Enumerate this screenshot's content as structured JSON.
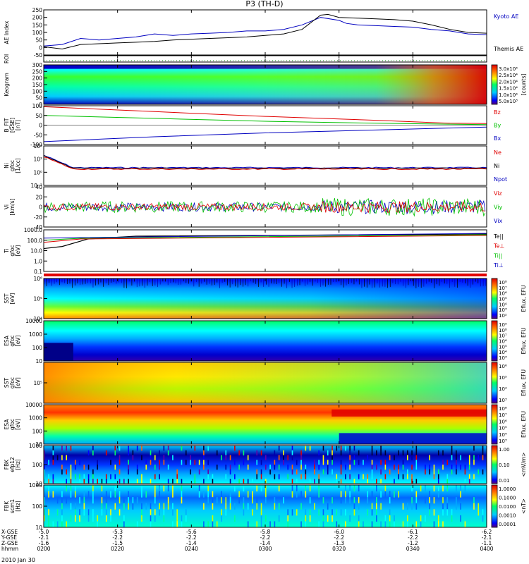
{
  "title": "P3 (TH-D)",
  "date_label": "2010 Jan 30",
  "colors": {
    "red": "#e00000",
    "green": "#00c000",
    "blue": "#0000c0",
    "black": "#000000"
  },
  "chart_data": {
    "type": "multi-panel-timeseries",
    "time_ticks": [
      "0200",
      "0220",
      "0240",
      "0300",
      "0320",
      "0340",
      "0400"
    ],
    "xlim": [
      "0200",
      "0400"
    ],
    "xlabel_rows": [
      {
        "label": "X-GSE",
        "values": [
          "-5.0",
          "-5.3",
          "-5.6",
          "-5.8",
          "-6.0",
          "-6.1",
          "-6.2"
        ]
      },
      {
        "label": "Y-GSE",
        "values": [
          "-2.1",
          "-2.2",
          "-2.2",
          "-2.2",
          "-2.2",
          "-2.2",
          "-2.1"
        ]
      },
      {
        "label": "Z-GSE",
        "values": [
          "-1.6",
          "-1.5",
          "-1.4",
          "-1.4",
          "-1.3",
          "-1.2",
          "-1.1"
        ]
      },
      {
        "label": "hhmm",
        "values": [
          "0200",
          "0220",
          "0240",
          "0300",
          "0320",
          "0340",
          "0400"
        ]
      }
    ],
    "panels": [
      {
        "id": "ae",
        "type": "line",
        "ylabel": "AE Index",
        "yticks": [
          "250",
          "200",
          "150",
          "100",
          "50",
          "0",
          "-50"
        ],
        "ylim": [
          -50,
          250
        ],
        "legend": [
          "Kyoto AE",
          "Themis AE"
        ],
        "series": [
          {
            "name": "Kyoto AE",
            "color": "blue",
            "x": [
              0,
              5,
              10,
              15,
              20,
              25,
              30,
              35,
              40,
              45,
              50,
              55,
              60,
              65,
              70,
              75,
              80,
              82,
              85,
              90,
              95,
              100,
              105,
              110,
              115,
              120
            ],
            "y": [
              10,
              20,
              60,
              50,
              60,
              70,
              90,
              80,
              90,
              95,
              100,
              110,
              110,
              120,
              150,
              200,
              180,
              160,
              150,
              145,
              140,
              135,
              120,
              110,
              90,
              85
            ]
          },
          {
            "name": "Themis AE",
            "color": "black",
            "x": [
              0,
              5,
              10,
              15,
              20,
              25,
              30,
              35,
              40,
              45,
              50,
              55,
              60,
              65,
              70,
              75,
              77,
              80,
              85,
              90,
              95,
              100,
              105,
              110,
              115,
              120
            ],
            "y": [
              5,
              -10,
              20,
              25,
              30,
              35,
              40,
              50,
              55,
              60,
              65,
              70,
              80,
              90,
              120,
              215,
              220,
              200,
              195,
              190,
              185,
              175,
              150,
              120,
              100,
              95
            ]
          }
        ]
      },
      {
        "id": "roi",
        "type": "flags",
        "ylabel": "ROI"
      },
      {
        "id": "keogram",
        "type": "heatmap",
        "ylabel": "Keogram",
        "yticks": [
          "300",
          "250",
          "200",
          "150",
          "100",
          "50",
          "0"
        ],
        "ylim": [
          0,
          300
        ],
        "colorbar": {
          "label": "[counts]",
          "ticks": [
            "3.0x10⁴",
            "2.5x10⁴",
            "2.0x10⁴",
            "1.5x10⁴",
            "1.0x10⁴",
            "5.0x10³"
          ]
        }
      },
      {
        "id": "bfit",
        "type": "line",
        "ylabel": "B_FIT",
        "ylabel2": "[GSE]",
        "ylabel3": "[nT]",
        "yticks": [
          "100",
          "50",
          "0",
          "-50",
          "-100"
        ],
        "ylim": [
          -100,
          100
        ],
        "legend": [
          "Bz",
          "By",
          "Bx"
        ],
        "series": [
          {
            "name": "Bz",
            "color": "red",
            "x": [
              0,
              30,
              60,
              90,
              110,
              120
            ],
            "y": [
              95,
              70,
              45,
              25,
              10,
              8
            ]
          },
          {
            "name": "By",
            "color": "green",
            "x": [
              0,
              30,
              60,
              90,
              110,
              120
            ],
            "y": [
              50,
              35,
              20,
              10,
              5,
              3
            ]
          },
          {
            "name": "Bx",
            "color": "blue",
            "x": [
              0,
              30,
              60,
              90,
              110,
              120
            ],
            "y": [
              -85,
              -60,
              -40,
              -25,
              -15,
              -10
            ]
          }
        ]
      },
      {
        "id": "ni",
        "type": "line",
        "ylabel": "Ni",
        "ylabel2": "gfoc",
        "ylabel3": "[1/cc]",
        "yticks": [
          "10⁴",
          "10²",
          "10⁰",
          "10⁻²"
        ],
        "ylog": true,
        "legend": [
          "Ne",
          "Ni",
          "Npot"
        ]
      },
      {
        "id": "vi",
        "type": "line",
        "ylabel": "Vi",
        "ylabel2": "[km/s]",
        "yticks": [
          "40",
          "20",
          "0",
          "-20",
          "-40"
        ],
        "ylim": [
          -40,
          40
        ],
        "legend": [
          "Viz",
          "Viy",
          "Vix"
        ]
      },
      {
        "id": "ti",
        "type": "line",
        "ylabel": "Ti",
        "ylabel2": "gfoc",
        "ylabel3": "[eV]",
        "yticks": [
          "1000.0",
          "100.0",
          "10.0",
          "1.0",
          "0.1"
        ],
        "ylog": true,
        "legend": [
          "Te||",
          "Te⊥",
          "Ti||",
          "Ti⊥"
        ]
      },
      {
        "id": "sst_e",
        "type": "heatmap",
        "ylabel": "SST",
        "ylabel2": "[eV]",
        "yticks": [
          "10⁶",
          "10⁵",
          "10⁴"
        ],
        "colorbar": {
          "label": "Eflux, EFU",
          "ticks": [
            "10⁸",
            "10⁷",
            "10⁶",
            "10⁵",
            "10⁴",
            "10³",
            "10²"
          ]
        }
      },
      {
        "id": "esa_e",
        "type": "heatmap",
        "ylabel": "ESA",
        "ylabel2": "gfoc",
        "ylabel3": "[eV]",
        "yticks": [
          "10000",
          "1000",
          "100",
          "10"
        ],
        "colorbar": {
          "label": "Eflux, EFU",
          "ticks": [
            "10⁹",
            "10⁸",
            "10⁷",
            "10⁶",
            "10⁵",
            "10⁴",
            "10³"
          ]
        }
      },
      {
        "id": "sst_i",
        "type": "heatmap",
        "ylabel": "SST",
        "ylabel2": "gfoc",
        "ylabel3": "[eV]",
        "yticks": [
          "10⁵"
        ],
        "colorbar": {
          "label": "Eflux, EFU",
          "ticks": [
            "10⁶",
            "10⁵",
            "10⁴",
            "10³"
          ]
        }
      },
      {
        "id": "esa_i",
        "type": "heatmap",
        "ylabel": "ESA",
        "ylabel2": "gfoc",
        "ylabel3": "[eV]",
        "yticks": [
          "10000",
          "1000",
          "100",
          "10"
        ],
        "colorbar": {
          "label": "Eflux, EFU",
          "ticks": [
            "10⁸",
            "10⁷",
            "10⁶",
            "10⁵",
            "10⁴",
            "10³"
          ]
        }
      },
      {
        "id": "fbk_e",
        "type": "heatmap",
        "ylabel": "FBK",
        "ylabel2": "efp12",
        "ylabel3": "[Hz]",
        "yticks": [
          "1000",
          "100",
          "10"
        ],
        "colorbar": {
          "label": "<mV/m>",
          "ticks": [
            "1.00",
            "0.10",
            "0.01"
          ]
        }
      },
      {
        "id": "fbk_b",
        "type": "heatmap",
        "ylabel": "FBK",
        "ylabel2": "scm1",
        "ylabel3": "[Hz]",
        "yticks": [
          "1000",
          "100",
          "10"
        ],
        "colorbar": {
          "label": "<nT>",
          "ticks": [
            "1.0000",
            "0.1000",
            "0.0100",
            "0.0010",
            "0.0001"
          ]
        }
      }
    ]
  }
}
